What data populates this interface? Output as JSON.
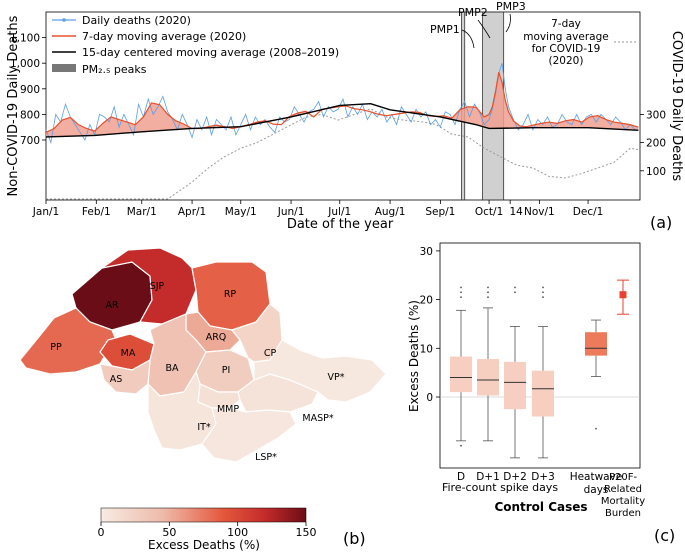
{
  "colors": {
    "daily": "#5b9ee6",
    "ma7": "#e8502a",
    "fill": "#eea090",
    "ma15": "#000000",
    "covid": "#9a9a9a",
    "pm": "#777777",
    "map_scale": [
      "#f7ebe3",
      "#eebbaa",
      "#e3573c",
      "#c42b2b",
      "#6b0d16"
    ],
    "box": "#f6cfc0",
    "heatwave": "#ee7a5c",
    "p20f": "#e8412e"
  },
  "chart_data": [
    {
      "type": "line",
      "panel": "(a)",
      "xlabel": "Date of the year",
      "ylabel_left": "Non-COVID-19 Daily Deaths",
      "ylabel_right": "COVID-19 Daily Deaths",
      "xticks": [
        "Jan/1",
        "Feb/1",
        "Mar/1",
        "Apr/1",
        "May/1",
        "Jun/1",
        "Jul/1",
        "Aug/1",
        "Sep/1",
        "Oct/1",
        "14",
        "Nov/1",
        "Dec/1"
      ],
      "xtick_days": [
        0,
        31,
        59,
        90,
        120,
        151,
        181,
        212,
        243,
        273,
        286,
        304,
        334
      ],
      "yticks_left": [
        "700",
        "800",
        "900",
        "1,000",
        "1,100"
      ],
      "yticks_right": [
        "100",
        "200",
        "300"
      ],
      "legend": [
        "Daily deaths (2020)",
        "7-day moving average (2020)",
        "15-day centered moving average (2008–2019)",
        "PM₂.₅ peaks"
      ],
      "annotations": [
        "PMP1",
        "PMP2",
        "PMP3",
        "7-day moving average for COVID-19 (2020)"
      ],
      "pm_peaks": [
        [
          256,
          258
        ],
        [
          269,
          282
        ]
      ],
      "baseline_15day": {
        "x": [
          0,
          30,
          59,
          90,
          120,
          151,
          181,
          200,
          212,
          243,
          265,
          273,
          300,
          334,
          365
        ],
        "y": [
          712,
          718,
          732,
          745,
          752,
          790,
          835,
          842,
          818,
          790,
          760,
          745,
          748,
          748,
          738
        ]
      },
      "ma7_2020": {
        "x": [
          0,
          5,
          10,
          15,
          20,
          25,
          30,
          35,
          40,
          45,
          50,
          55,
          60,
          65,
          70,
          75,
          80,
          85,
          90,
          95,
          100,
          105,
          110,
          115,
          120,
          125,
          130,
          135,
          140,
          145,
          150,
          155,
          160,
          165,
          170,
          175,
          180,
          185,
          190,
          195,
          200,
          205,
          210,
          215,
          220,
          225,
          230,
          235,
          240,
          245,
          250,
          255,
          260,
          265,
          270,
          273,
          275,
          277,
          279,
          281,
          283,
          285,
          288,
          292,
          296,
          300,
          305,
          310,
          315,
          320,
          325,
          330,
          335,
          340,
          345,
          350,
          355,
          360,
          365
        ],
        "y": [
          730,
          745,
          778,
          788,
          760,
          745,
          735,
          765,
          790,
          780,
          770,
          760,
          790,
          845,
          838,
          800,
          775,
          762,
          745,
          745,
          752,
          758,
          752,
          745,
          752,
          760,
          770,
          775,
          762,
          760,
          792,
          805,
          812,
          790,
          820,
          825,
          830,
          833,
          822,
          818,
          810,
          800,
          795,
          800,
          805,
          810,
          808,
          795,
          792,
          795,
          785,
          818,
          830,
          828,
          790,
          800,
          830,
          890,
          965,
          925,
          855,
          810,
          775,
          755,
          752,
          758,
          765,
          770,
          765,
          775,
          780,
          770,
          790,
          795,
          780,
          770,
          765,
          760,
          750
        ]
      },
      "daily_2020": {
        "x": [
          0,
          3,
          6,
          9,
          12,
          15,
          18,
          21,
          24,
          27,
          30,
          33,
          36,
          39,
          42,
          45,
          48,
          51,
          54,
          57,
          60,
          63,
          66,
          69,
          72,
          75,
          78,
          81,
          84,
          87,
          90,
          93,
          96,
          99,
          102,
          105,
          108,
          111,
          114,
          117,
          120,
          123,
          126,
          129,
          132,
          135,
          138,
          141,
          144,
          147,
          150,
          153,
          156,
          159,
          162,
          165,
          168,
          171,
          174,
          177,
          180,
          183,
          186,
          189,
          192,
          195,
          198,
          201,
          204,
          207,
          210,
          213,
          216,
          219,
          222,
          225,
          228,
          231,
          234,
          237,
          240,
          243,
          246,
          249,
          252,
          255,
          258,
          261,
          264,
          267,
          270,
          273,
          275,
          277,
          279,
          281,
          283,
          285,
          288,
          291,
          294,
          297,
          300,
          303,
          306,
          309,
          312,
          315,
          318,
          321,
          324,
          327,
          330,
          333,
          336,
          339,
          342,
          345,
          348,
          351,
          354,
          357,
          360,
          363
        ],
        "y": [
          740,
          690,
          800,
          770,
          840,
          790,
          760,
          730,
          700,
          760,
          720,
          800,
          790,
          770,
          830,
          750,
          800,
          760,
          720,
          840,
          790,
          860,
          800,
          830,
          870,
          810,
          780,
          740,
          800,
          760,
          710,
          780,
          740,
          790,
          720,
          780,
          760,
          740,
          790,
          720,
          760,
          800,
          740,
          790,
          760,
          780,
          750,
          730,
          790,
          770,
          780,
          830,
          800,
          770,
          810,
          820,
          850,
          790,
          830,
          810,
          820,
          860,
          790,
          830,
          800,
          840,
          780,
          810,
          790,
          820,
          770,
          800,
          760,
          830,
          800,
          770,
          820,
          790,
          810,
          760,
          780,
          750,
          810,
          800,
          760,
          820,
          850,
          790,
          840,
          810,
          760,
          780,
          820,
          880,
          960,
          1000,
          900,
          830,
          780,
          740,
          760,
          800,
          740,
          780,
          760,
          790,
          750,
          760,
          800,
          770,
          760,
          800,
          760,
          790,
          800,
          770,
          800,
          780,
          760,
          790,
          770,
          740,
          760,
          740
        ]
      },
      "covid_ma7": {
        "x": [
          0,
          75,
          80,
          90,
          100,
          110,
          120,
          130,
          140,
          150,
          160,
          170,
          180,
          190,
          200,
          210,
          220,
          230,
          240,
          250,
          260,
          270,
          280,
          290,
          300,
          310,
          320,
          330,
          340,
          350,
          360,
          365
        ],
        "y": [
          0,
          0,
          20,
          60,
          110,
          150,
          180,
          200,
          230,
          260,
          290,
          300,
          280,
          300,
          320,
          290,
          280,
          275,
          265,
          230,
          220,
          180,
          150,
          120,
          110,
          80,
          75,
          90,
          110,
          130,
          180,
          175
        ]
      }
    },
    {
      "type": "heatmap",
      "panel": "(b)",
      "colorbar_label": "Excess Deaths (%)",
      "colorbar_ticks": [
        "0",
        "50",
        "100",
        "150"
      ],
      "regions": [
        {
          "name": "AR",
          "value": 150
        },
        {
          "name": "SJP",
          "value": 125
        },
        {
          "name": "RP",
          "value": 95
        },
        {
          "name": "PP",
          "value": 90
        },
        {
          "name": "MA",
          "value": 105
        },
        {
          "name": "ARQ",
          "value": 55
        },
        {
          "name": "BA",
          "value": 38
        },
        {
          "name": "AS",
          "value": 30
        },
        {
          "name": "PI",
          "value": 28
        },
        {
          "name": "CP",
          "value": 22
        },
        {
          "name": "MMP",
          "value": 10
        },
        {
          "name": "MASP*",
          "value": 8
        },
        {
          "name": "VP*",
          "value": 3
        },
        {
          "name": "IT*",
          "value": 6
        },
        {
          "name": "LSP*",
          "value": 5
        }
      ]
    },
    {
      "type": "box",
      "panel": "(c)",
      "ylabel": "Excess Deaths (%)",
      "xlabel": "Control Cases",
      "group_label": "Fire-count spike days",
      "yticks": [
        "0",
        "10",
        "20",
        "30"
      ],
      "ylim": [
        -10,
        31
      ],
      "boxes": [
        {
          "label": "D",
          "q1": 1,
          "median": 4,
          "q3": 8.3,
          "whislo": -9,
          "whishi": 17.8,
          "fliers": [
            20.5,
            21.5,
            22.5,
            -10
          ]
        },
        {
          "label": "D+1",
          "q1": 0.3,
          "median": 3.5,
          "q3": 7.8,
          "whislo": -9,
          "whishi": 18.3,
          "fliers": [
            20.5,
            21.5,
            22.5
          ]
        },
        {
          "label": "D+2",
          "q1": -2.5,
          "median": 3,
          "q3": 7.2,
          "whislo": -12.5,
          "whishi": 14.5,
          "fliers": [
            21.5,
            22.5
          ]
        },
        {
          "label": "D+3",
          "q1": -4,
          "median": 1.7,
          "q3": 5.4,
          "whislo": -12.5,
          "whishi": 14.5,
          "fliers": [
            20.5,
            21.5,
            22.5
          ]
        },
        {
          "label": "Heatwave days",
          "q1": 8.5,
          "median": 10,
          "q3": 13.3,
          "whislo": 4.2,
          "whishi": 15.8,
          "fliers": [
            -6.5
          ]
        }
      ],
      "point": {
        "label": "P20F-Related Mortality Burden",
        "value": 21,
        "low": 17,
        "high": 24
      }
    }
  ]
}
